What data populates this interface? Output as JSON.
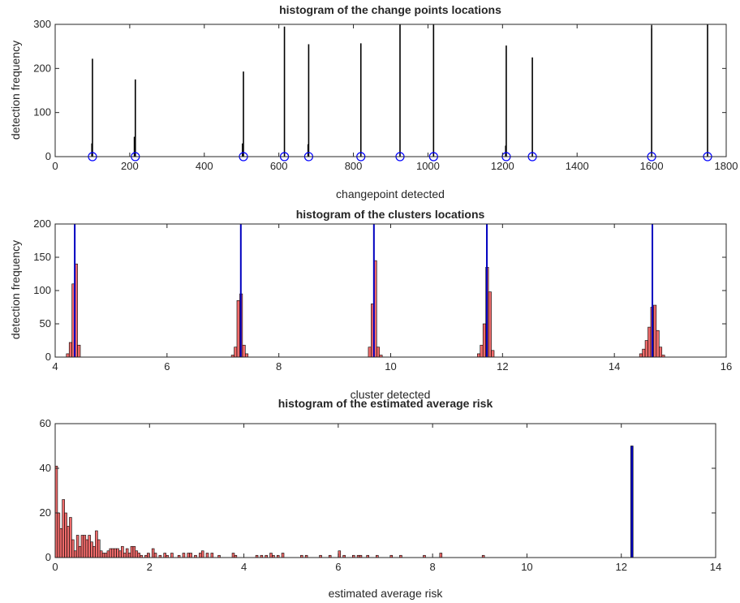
{
  "colors": {
    "axis": "#262626",
    "spike": "#000000",
    "marker": "#0000ff",
    "bar_fill": "#ef6b6b",
    "bar_edge": "#000000",
    "blue_line": "#0000c0"
  },
  "chart_data": [
    {
      "type": "bar",
      "title": "histogram of the change points locations",
      "xlabel": "changepoint detected",
      "ylabel": "detection frequency",
      "xlim": [
        0,
        1800
      ],
      "ylim": [
        0,
        300
      ],
      "xticks": [
        "0",
        "200",
        "400",
        "600",
        "800",
        "1000",
        "1200",
        "1400",
        "1600",
        "1800"
      ],
      "yticks": [
        "0",
        "100",
        "200",
        "300"
      ],
      "grid": false,
      "series": [
        {
          "kind": "spikes",
          "x": [
            100,
            215,
            505,
            615,
            680,
            820,
            925,
            1015,
            1210,
            1280,
            1600,
            1750
          ],
          "values": [
            222,
            175,
            193,
            295,
            255,
            257,
            300,
            300,
            252,
            225,
            298,
            300
          ]
        },
        {
          "kind": "secondary-spikes",
          "x": [
            98,
            212,
            502,
            678,
            1208
          ],
          "values": [
            30,
            45,
            30,
            28,
            25
          ]
        },
        {
          "kind": "markers",
          "x": [
            100,
            215,
            505,
            615,
            680,
            820,
            925,
            1015,
            1210,
            1280,
            1600,
            1750
          ],
          "values": [
            0,
            0,
            0,
            0,
            0,
            0,
            0,
            0,
            0,
            0,
            0,
            0
          ]
        }
      ]
    },
    {
      "type": "bar",
      "title": "histogram of the clusters locations",
      "xlabel": "cluster detected",
      "ylabel": "detection frequency",
      "xlim": [
        4,
        16
      ],
      "ylim": [
        0,
        200
      ],
      "xticks": [
        "4",
        "6",
        "8",
        "10",
        "12",
        "14",
        "16"
      ],
      "yticks": [
        "0",
        "50",
        "100",
        "150",
        "200"
      ],
      "grid": false,
      "series": [
        {
          "kind": "histogram",
          "bin_width": 0.05,
          "x": [
            4.2,
            4.25,
            4.3,
            4.35,
            4.4,
            7.15,
            7.2,
            7.25,
            7.3,
            7.35,
            7.4,
            9.6,
            9.65,
            9.7,
            9.75,
            9.8,
            11.55,
            11.6,
            11.65,
            11.7,
            11.75,
            11.8,
            14.45,
            14.5,
            14.55,
            14.6,
            14.65,
            14.7,
            14.75,
            14.8,
            14.85
          ],
          "values": [
            5,
            22,
            110,
            140,
            18,
            3,
            15,
            85,
            95,
            18,
            5,
            15,
            80,
            145,
            15,
            3,
            5,
            18,
            50,
            135,
            98,
            10,
            5,
            12,
            25,
            45,
            75,
            78,
            40,
            15,
            3
          ]
        },
        {
          "kind": "vertical-lines",
          "x": [
            4.35,
            7.32,
            9.7,
            11.72,
            14.68
          ]
        }
      ]
    },
    {
      "type": "bar",
      "title": "histogram of the estimated average risk",
      "xlabel": "estimated average risk",
      "ylabel": "",
      "xlim": [
        0,
        14
      ],
      "ylim": [
        0,
        60
      ],
      "xticks": [
        "0",
        "2",
        "4",
        "6",
        "8",
        "10",
        "12",
        "14"
      ],
      "yticks": [
        "0",
        "20",
        "40",
        "60"
      ],
      "grid": false,
      "series": [
        {
          "kind": "histogram",
          "bin_width": 0.05,
          "x": [
            0.0,
            0.05,
            0.1,
            0.15,
            0.2,
            0.25,
            0.3,
            0.35,
            0.4,
            0.45,
            0.5,
            0.55,
            0.6,
            0.65,
            0.7,
            0.75,
            0.8,
            0.85,
            0.9,
            0.95,
            1.0,
            1.05,
            1.1,
            1.15,
            1.2,
            1.25,
            1.3,
            1.35,
            1.4,
            1.45,
            1.5,
            1.55,
            1.6,
            1.65,
            1.7,
            1.75,
            1.8,
            1.9,
            1.95,
            2.05,
            2.1,
            2.2,
            2.3,
            2.35,
            2.45,
            2.6,
            2.7,
            2.8,
            2.85,
            2.95,
            3.05,
            3.1,
            3.2,
            3.3,
            3.45,
            3.75,
            3.8,
            4.25,
            4.35,
            4.45,
            4.55,
            4.6,
            4.7,
            4.8,
            5.2,
            5.3,
            5.6,
            5.8,
            6.0,
            6.1,
            6.3,
            6.4,
            6.45,
            6.6,
            6.8,
            7.1,
            7.3,
            7.8,
            8.15,
            9.05
          ],
          "values": [
            41,
            20,
            13,
            26,
            20,
            14,
            18,
            8,
            3,
            10,
            5,
            10,
            10,
            8,
            10,
            7,
            5,
            12,
            8,
            3,
            2,
            2,
            3,
            4,
            4,
            4,
            4,
            3,
            5,
            2,
            4,
            2,
            5,
            5,
            3,
            2,
            1,
            1,
            2,
            4,
            2,
            1,
            2,
            1,
            2,
            1,
            2,
            2,
            2,
            1,
            2,
            3,
            2,
            2,
            1,
            2,
            1,
            1,
            1,
            1,
            2,
            1,
            1,
            2,
            1,
            1,
            1,
            1,
            3,
            1,
            1,
            1,
            1,
            1,
            1,
            1,
            1,
            1,
            2,
            1
          ]
        },
        {
          "kind": "tall-bar",
          "bin_width": 0.05,
          "x": [
            12.2
          ],
          "values": [
            50
          ]
        }
      ]
    }
  ]
}
